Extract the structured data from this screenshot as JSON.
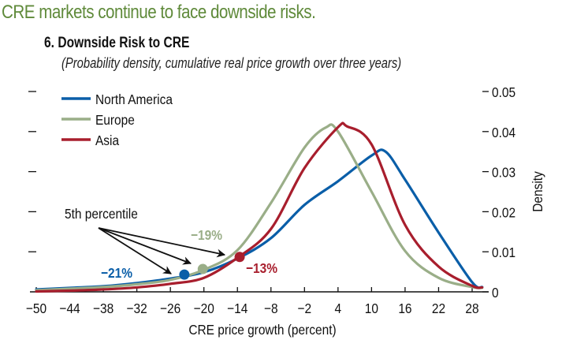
{
  "headline": "CRE markets continue to face downside risks.",
  "chart_data": {
    "type": "line",
    "title": "6. Downside Risk to CRE",
    "subtitle": "(Probability density, cumulative real price growth over three years)",
    "xlabel": "CRE price growth (percent)",
    "ylabel": "Density",
    "xlim": [
      -50,
      31
    ],
    "ylim": [
      0,
      0.05
    ],
    "x_ticks": [
      -50,
      -44,
      -38,
      -32,
      -26,
      -20,
      -14,
      -8,
      -2,
      4,
      10,
      16,
      22,
      28
    ],
    "x_tick_labels": [
      "−50",
      "−44",
      "−38",
      "−32",
      "−26",
      "−20",
      "−14",
      "−8",
      "−2",
      "4",
      "10",
      "16",
      "22",
      "28"
    ],
    "y_ticks": [
      0,
      0.01,
      0.02,
      0.03,
      0.04,
      0.05
    ],
    "y_tick_labels": [
      "0",
      "0.01",
      "0.02",
      "0.03",
      "0.04",
      "0.05"
    ],
    "y_axis_side": "right",
    "grid": false,
    "legend_position": "top-left",
    "series": [
      {
        "name": "North America",
        "color": "#0a5ea8",
        "x": [
          -50,
          -44,
          -38,
          -32,
          -26,
          -20,
          -14,
          -8,
          -2,
          4,
          10,
          12.5,
          16,
          22,
          28,
          29.8
        ],
        "y": [
          0.0006,
          0.001,
          0.0014,
          0.0022,
          0.0033,
          0.0049,
          0.0083,
          0.0134,
          0.0217,
          0.0276,
          0.034,
          0.035,
          0.028,
          0.0148,
          0.0024,
          0.0012
        ]
      },
      {
        "name": "Europe",
        "color": "#9aae88",
        "x": [
          -50,
          -44,
          -38,
          -32,
          -26,
          -20,
          -14,
          -8,
          -2,
          1.8,
          4,
          10,
          16,
          22,
          28,
          29.8
        ],
        "y": [
          0.0004,
          0.0008,
          0.0012,
          0.0019,
          0.003,
          0.0055,
          0.0104,
          0.0222,
          0.036,
          0.041,
          0.04,
          0.025,
          0.0102,
          0.0035,
          0.0012,
          0.001
        ]
      },
      {
        "name": "Asia",
        "color": "#a81e2d",
        "x": [
          -50,
          -44,
          -38,
          -32,
          -26,
          -20,
          -14,
          -8,
          -2,
          4,
          5.6,
          10,
          16,
          22,
          28,
          29.8
        ],
        "y": [
          0.0001,
          0.0003,
          0.0006,
          0.0011,
          0.002,
          0.0035,
          0.0085,
          0.0157,
          0.0309,
          0.0411,
          0.0413,
          0.0368,
          0.0167,
          0.0063,
          0.0015,
          0.0011
        ]
      }
    ],
    "annotations": {
      "label": "5th percentile",
      "points": [
        {
          "series": "North America",
          "label": "−21%",
          "x": -23.5,
          "y": 0.0043,
          "color": "#0a5ea8"
        },
        {
          "series": "Europe",
          "label": "−19%",
          "x": -20.2,
          "y": 0.0057,
          "color": "#9aae88"
        },
        {
          "series": "Asia",
          "label": "−13%",
          "x": -13.6,
          "y": 0.0087,
          "color": "#a81e2d"
        }
      ]
    }
  }
}
